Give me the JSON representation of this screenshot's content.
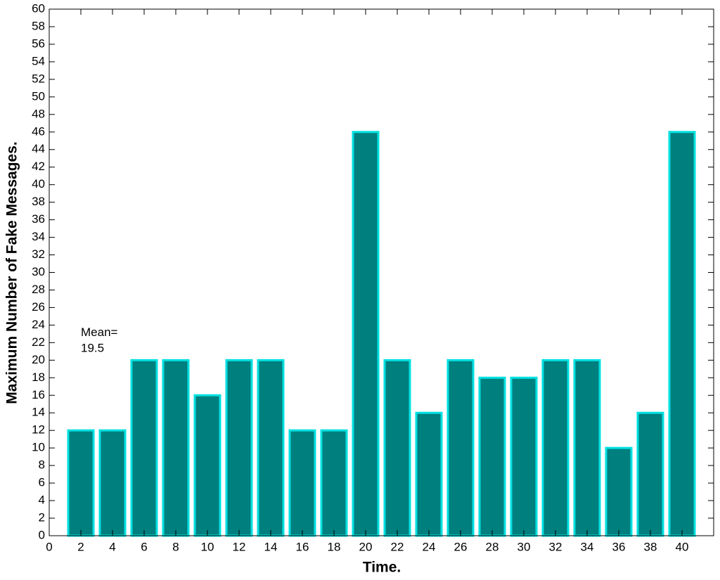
{
  "chart_data": {
    "type": "bar",
    "x_label": "Time.",
    "y_label": "Maximum Number of Fake Messages.",
    "x": [
      2,
      4,
      6,
      8,
      10,
      12,
      14,
      16,
      18,
      20,
      22,
      24,
      26,
      28,
      30,
      32,
      34,
      36,
      38,
      40
    ],
    "values": [
      12,
      12,
      20,
      20,
      16,
      20,
      20,
      12,
      12,
      46,
      20,
      14,
      20,
      18,
      18,
      20,
      20,
      10,
      14,
      46
    ],
    "color": "#007f7f",
    "edge_color": "#00e0e0",
    "xlim": [
      0,
      42
    ],
    "xticks": [
      0,
      2,
      4,
      6,
      8,
      10,
      12,
      14,
      16,
      18,
      20,
      22,
      24,
      26,
      28,
      30,
      32,
      34,
      36,
      38,
      40
    ],
    "ylim": [
      0,
      60
    ],
    "yticks": [
      0,
      2,
      4,
      6,
      8,
      10,
      12,
      14,
      16,
      18,
      20,
      22,
      24,
      26,
      28,
      30,
      32,
      34,
      36,
      38,
      40,
      42,
      44,
      46,
      48,
      50,
      52,
      54,
      56,
      58,
      60
    ],
    "annotation": {
      "label": "Mean=",
      "value": 19.5,
      "color": "#ff0000"
    }
  }
}
